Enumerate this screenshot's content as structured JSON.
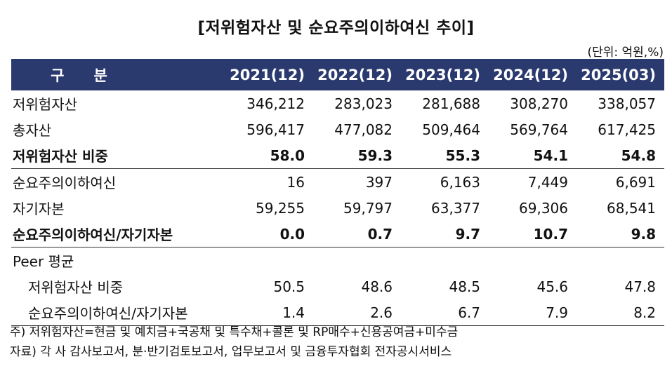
{
  "title": "[저위험자산 및 순요주의이하여신 추이]",
  "unit": "(단위: 억원,%)",
  "header": {
    "label": "구분",
    "years": [
      "2021(12)",
      "2022(12)",
      "2023(12)",
      "2024(12)",
      "2025(03)"
    ]
  },
  "rows": [
    {
      "label": "저위험자산",
      "values": [
        "346,212",
        "283,023",
        "281,688",
        "308,270",
        "338,057"
      ]
    },
    {
      "label": "총자산",
      "values": [
        "596,417",
        "477,082",
        "509,464",
        "569,764",
        "617,425"
      ]
    },
    {
      "label": "저위험자산 비중",
      "values": [
        "58.0",
        "59.3",
        "55.3",
        "54.1",
        "54.8"
      ]
    },
    {
      "label": "순요주의이하여신",
      "values": [
        "16",
        "397",
        "6,163",
        "7,449",
        "6,691"
      ]
    },
    {
      "label": "자기자본",
      "values": [
        "59,255",
        "59,797",
        "63,377",
        "69,306",
        "68,541"
      ]
    },
    {
      "label": "순요주의이하여신/자기자본",
      "values": [
        "0.0",
        "0.7",
        "9.7",
        "10.7",
        "9.8"
      ]
    },
    {
      "label": "Peer 평균",
      "values": [
        "",
        "",
        "",
        "",
        ""
      ]
    },
    {
      "label": "저위험자산 비중",
      "values": [
        "50.5",
        "48.6",
        "48.5",
        "45.6",
        "47.8"
      ]
    },
    {
      "label": "순요주의이하여신/자기자본",
      "values": [
        "1.4",
        "2.6",
        "6.7",
        "7.9",
        "8.2"
      ]
    }
  ],
  "notes": [
    "주) 저위험자산=현금 및 예치금+국공채 및 특수채+콜론 및 RP매수+신용공여금+미수금",
    "자료) 각 사 감사보고서, 분·반기검토보고서, 업무보고서 및 금융투자협회 전자공시서비스"
  ]
}
